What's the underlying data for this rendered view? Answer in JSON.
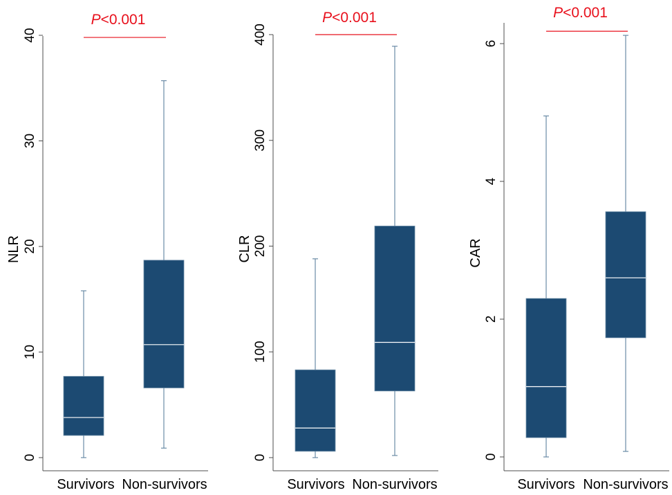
{
  "colors": {
    "box_fill": "#1c4a72",
    "whisker": "#6a8ba6",
    "median": "#ffffff",
    "axis": "#4d4d4d",
    "annotation": "#e8101c"
  },
  "chart_data": [
    {
      "type": "box",
      "ylabel": "NLR",
      "ylim": [
        0,
        40
      ],
      "yticks": [
        0,
        10,
        20,
        30,
        40
      ],
      "categories": [
        "Survivors",
        "Non-survivors"
      ],
      "boxes": [
        {
          "name": "Survivors",
          "min": 0.0,
          "q1": 2.1,
          "median": 3.8,
          "q3": 7.7,
          "max": 15.8
        },
        {
          "name": "Non-survivors",
          "min": 0.9,
          "q1": 6.6,
          "median": 10.7,
          "q3": 18.7,
          "max": 35.7
        }
      ],
      "annotation": {
        "p_symbol": "P",
        "p_rest": "<0.001",
        "bracket_y": 39.8
      }
    },
    {
      "type": "box",
      "ylabel": "CLR",
      "ylim": [
        0,
        400
      ],
      "yticks": [
        0,
        100,
        200,
        300,
        400
      ],
      "categories": [
        "Survivors",
        "Non-survivors"
      ],
      "boxes": [
        {
          "name": "Survivors",
          "min": 0,
          "q1": 6,
          "median": 28,
          "q3": 83,
          "max": 188
        },
        {
          "name": "Non-survivors",
          "min": 2,
          "q1": 63,
          "median": 109,
          "q3": 219,
          "max": 389
        }
      ],
      "annotation": {
        "p_symbol": "P",
        "p_rest": "<0.001",
        "bracket_y": 400
      }
    },
    {
      "type": "box",
      "ylabel": "CAR",
      "ylim": [
        0,
        6
      ],
      "yticks": [
        0,
        2,
        4,
        6
      ],
      "categories": [
        "Survivors",
        "Non-survivors"
      ],
      "boxes": [
        {
          "name": "Survivors",
          "min": 0.0,
          "q1": 0.28,
          "median": 1.02,
          "q3": 2.3,
          "max": 4.95
        },
        {
          "name": "Non-survivors",
          "min": 0.08,
          "q1": 1.73,
          "median": 2.6,
          "q3": 3.56,
          "max": 6.12
        }
      ],
      "annotation": {
        "p_symbol": "P",
        "p_rest": "<0.001",
        "bracket_y": 6.18
      }
    }
  ]
}
